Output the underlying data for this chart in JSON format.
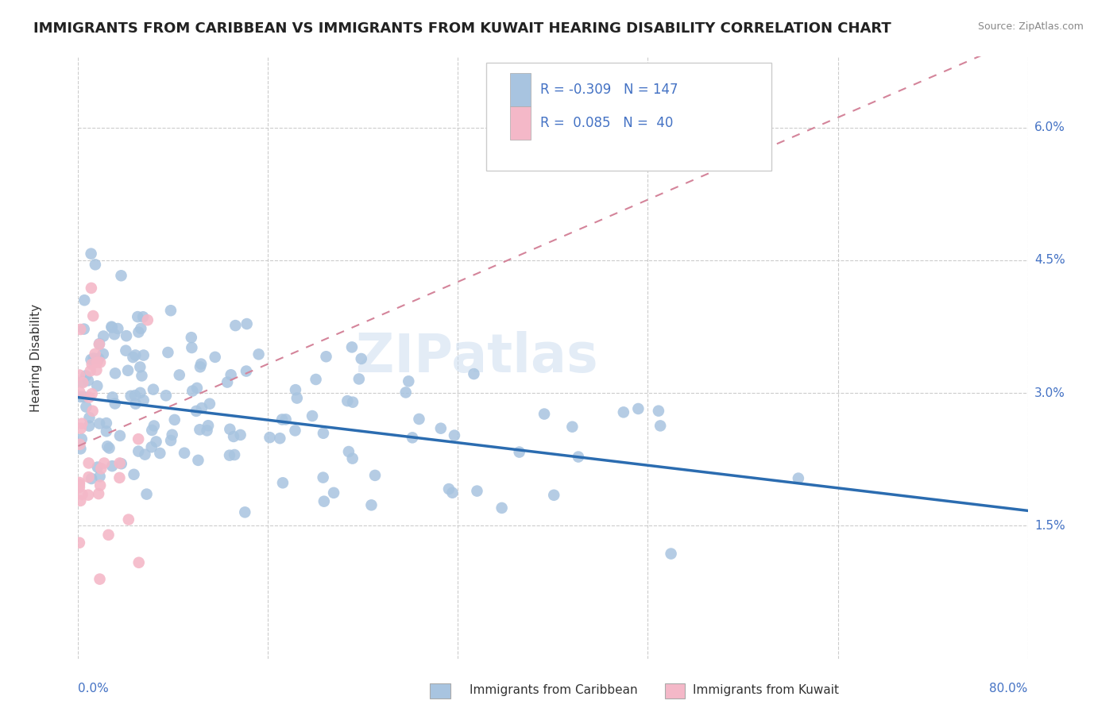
{
  "title": "IMMIGRANTS FROM CARIBBEAN VS IMMIGRANTS FROM KUWAIT HEARING DISABILITY CORRELATION CHART",
  "source": "Source: ZipAtlas.com",
  "ylabel": "Hearing Disability",
  "xmin": 0.0,
  "xmax": 0.8,
  "ymin": 0.0,
  "ymax": 0.068,
  "yticks": [
    0.015,
    0.03,
    0.045,
    0.06
  ],
  "ytick_labels": [
    "1.5%",
    "3.0%",
    "4.5%",
    "6.0%"
  ],
  "xtick_positions": [
    0.0,
    0.16,
    0.32,
    0.48,
    0.64,
    0.8
  ],
  "caribbean_color": "#a8c4e0",
  "kuwait_color": "#f4b8c8",
  "caribbean_line_color": "#2b6cb0",
  "kuwait_line_color": "#d4849a",
  "grid_color": "#cccccc",
  "background_color": "#ffffff",
  "watermark": "ZIPatlas",
  "legend_R_caribbean": "-0.309",
  "legend_N_caribbean": "147",
  "legend_R_kuwait": "0.085",
  "legend_N_kuwait": "40",
  "caribbean_slope": -0.016,
  "caribbean_intercept": 0.0295,
  "kuwait_slope": 0.058,
  "kuwait_intercept": 0.024,
  "title_fontsize": 13,
  "axis_label_color": "#4472c4",
  "text_color": "#333333",
  "legend_box_color": "#dddddd"
}
